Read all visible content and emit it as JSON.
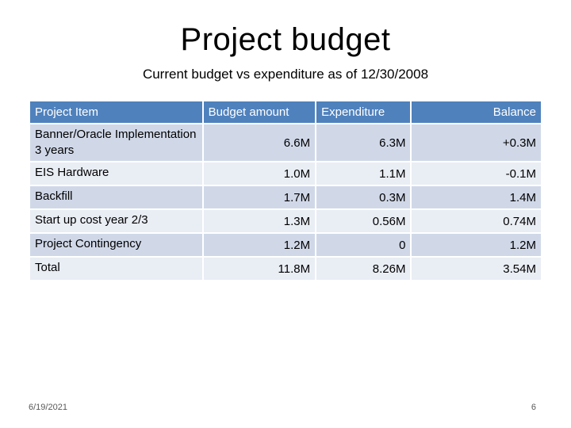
{
  "slide": {
    "title": "Project budget",
    "subtitle": "Current budget vs expenditure as of 12/30/2008",
    "footer_date": "6/19/2021",
    "page_number": "6"
  },
  "table": {
    "headers": [
      "Project Item",
      "Budget amount",
      "Expenditure",
      "Balance"
    ],
    "rows": [
      [
        "Banner/Oracle Implementation 3 years",
        "6.6M",
        "6.3M",
        "+0.3M"
      ],
      [
        "EIS Hardware",
        "1.0M",
        "1.1M",
        "-0.1M"
      ],
      [
        "Backfill",
        "1.7M",
        "0.3M",
        "1.4M"
      ],
      [
        "Start up cost year 2/3",
        "1.3M",
        "0.56M",
        "0.74M"
      ],
      [
        "Project Contingency",
        "1.2M",
        "0",
        "1.2M"
      ],
      [
        "Total",
        "11.8M",
        "8.26M",
        "3.54M"
      ]
    ]
  },
  "colors": {
    "header_bg": "#4f81bd",
    "row_odd_bg": "#d0d8e8",
    "row_even_bg": "#e9edf4"
  }
}
